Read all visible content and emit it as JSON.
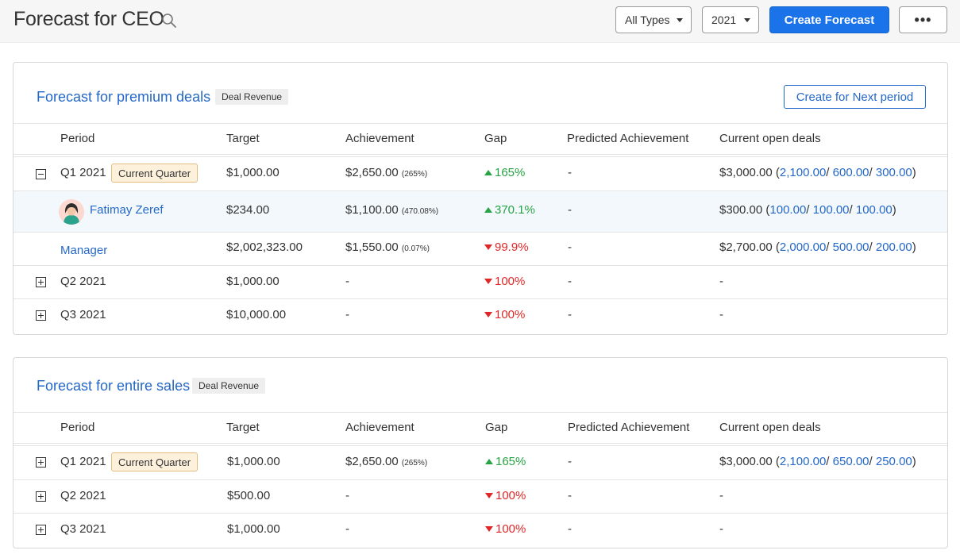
{
  "header": {
    "title": "Forecast for CEO",
    "type_filter": "All Types",
    "year_filter": "2021",
    "create_button": "Create Forecast",
    "more_button": "•••"
  },
  "columns": [
    "Period",
    "Target",
    "Achievement",
    "Gap",
    "Predicted Achievement",
    "Current open deals"
  ],
  "colors": {
    "accent": "#1a73e8",
    "link": "#2468c8",
    "gap_up": "#27a343",
    "gap_down": "#e02727",
    "quarter_tag_bg": "#fdf1dc"
  },
  "premium": {
    "title": "Forecast for premium deals",
    "badge": "Deal Revenue",
    "next_period_button": "Create for Next period",
    "rows": [
      {
        "period": "Q1 2021",
        "tag": "Current Quarter",
        "target": "$1,000.00",
        "achievement": "$2,650.00",
        "achievement_pct": "(265%)",
        "gap": "165%",
        "predicted": "-",
        "open_total": "$3,000.00",
        "open_v1": "2,100.00",
        "open_v2": "600.00",
        "open_v3": "300.00"
      },
      {
        "period": "Fatimay Zeref",
        "target": "$234.00",
        "achievement": "$1,100.00",
        "achievement_pct": "(470.08%)",
        "gap": "370.1%",
        "predicted": "-",
        "open_total": "$300.00",
        "open_v1": "100.00",
        "open_v2": "100.00",
        "open_v3": "100.00"
      },
      {
        "period": "Manager",
        "target": "$2,002,323.00",
        "achievement": "$1,550.00",
        "achievement_pct": "(0.07%)",
        "gap": "99.9%",
        "predicted": "-",
        "open_total": "$2,700.00",
        "open_v1": "2,000.00",
        "open_v2": "500.00",
        "open_v3": "200.00"
      },
      {
        "period": "Q2 2021",
        "target": "$1,000.00",
        "achievement": "-",
        "gap": "100%",
        "predicted": "-",
        "open_total": "-"
      },
      {
        "period": "Q3 2021",
        "target": "$10,000.00",
        "achievement": "-",
        "gap": "100%",
        "predicted": "-",
        "open_total": "-"
      }
    ]
  },
  "entire": {
    "title": "Forecast for entire sales",
    "badge": "Deal Revenue",
    "rows": [
      {
        "period": "Q1 2021",
        "tag": "Current Quarter",
        "target": "$1,000.00",
        "achievement": "$2,650.00",
        "achievement_pct": "(265%)",
        "gap": "165%",
        "predicted": "-",
        "open_total": "$3,000.00",
        "open_v1": "2,100.00",
        "open_v2": "650.00",
        "open_v3": "250.00"
      },
      {
        "period": "Q2 2021",
        "target": "$500.00",
        "achievement": "-",
        "gap": "100%",
        "predicted": "-",
        "open_total": "-"
      },
      {
        "period": "Q3 2021",
        "target": "$1,000.00",
        "achievement": "-",
        "gap": "100%",
        "predicted": "-",
        "open_total": "-"
      }
    ]
  }
}
